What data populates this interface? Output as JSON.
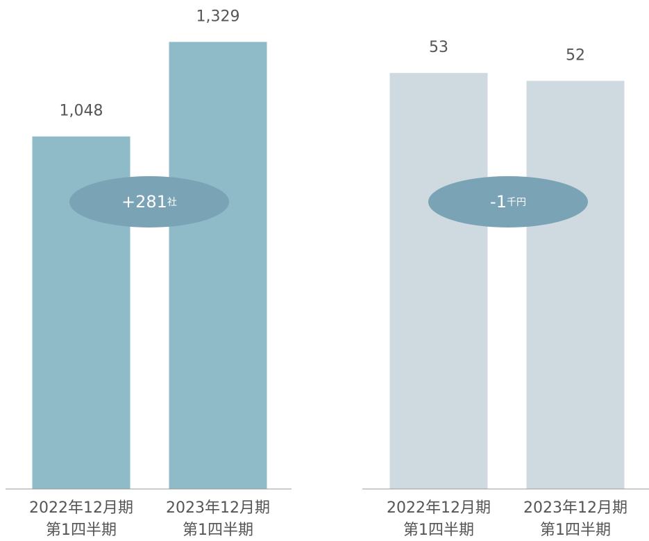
{
  "chart_data": [
    {
      "type": "bar",
      "categories": [
        [
          "2022年12月期",
          "第1四半期"
        ],
        [
          "2023年12月期",
          "第1四半期"
        ]
      ],
      "values": [
        1048,
        1329
      ],
      "value_labels": [
        "1,048",
        "1,329"
      ],
      "color": "#8fbac7",
      "ylim": [
        0,
        1400
      ],
      "annotation": {
        "text": "+281",
        "unit": "社"
      }
    },
    {
      "type": "bar",
      "categories": [
        [
          "2022年12月期",
          "第1四半期"
        ],
        [
          "2023年12月期",
          "第1四半期"
        ]
      ],
      "values": [
        53,
        52
      ],
      "color": "#cfd9e0",
      "ylim": [
        0,
        60
      ],
      "annotation": {
        "text": "-1",
        "unit": "千円"
      }
    }
  ]
}
